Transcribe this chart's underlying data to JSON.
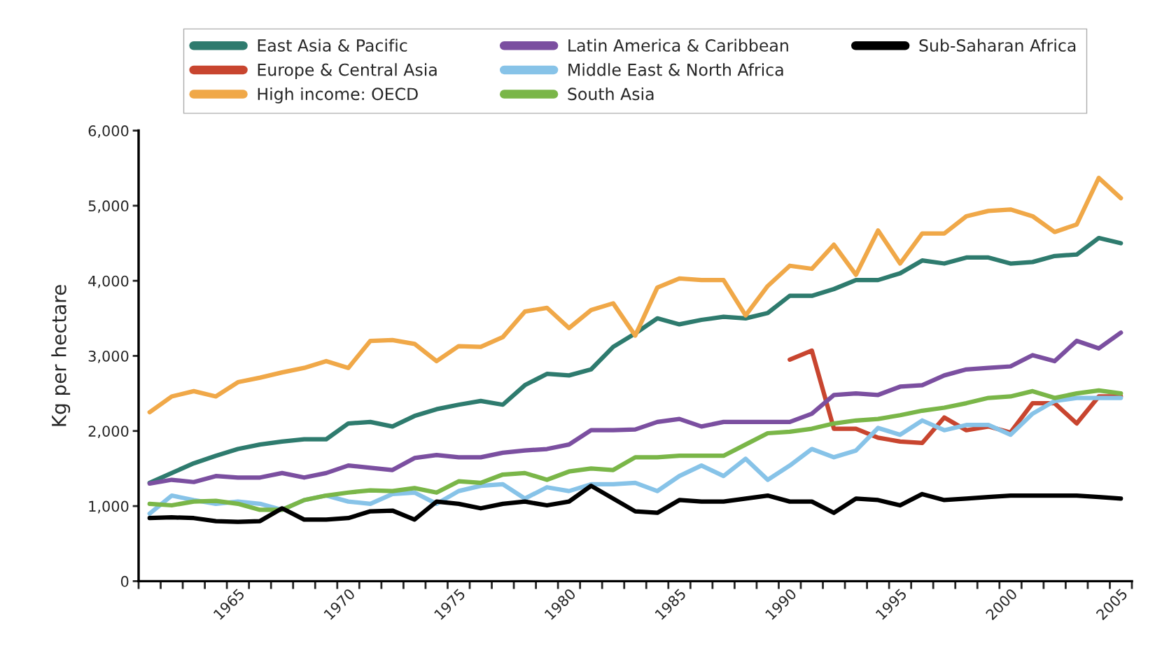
{
  "chart_data": {
    "type": "line",
    "ylabel": "Kg per hectare",
    "ylim": [
      0,
      6000
    ],
    "yticks": [
      {
        "value": 0,
        "label": "0"
      },
      {
        "value": 1000,
        "label": "1,000"
      },
      {
        "value": 2000,
        "label": "2,000"
      },
      {
        "value": 3000,
        "label": "3,000"
      },
      {
        "value": 4000,
        "label": "4,000"
      },
      {
        "value": 5000,
        "label": "5,000"
      },
      {
        "value": 6000,
        "label": "6,000"
      }
    ],
    "categories": [
      null,
      null,
      null,
      null,
      "1965",
      null,
      null,
      null,
      null,
      "1970",
      null,
      null,
      null,
      null,
      "1975",
      null,
      null,
      null,
      null,
      "1980",
      null,
      null,
      null,
      null,
      "1985",
      null,
      null,
      null,
      null,
      "1990",
      null,
      null,
      null,
      null,
      "1995",
      null,
      null,
      null,
      null,
      "2000",
      null,
      null,
      null,
      null,
      "2005"
    ],
    "legend": "top",
    "grid": false,
    "marker": "none",
    "line_style": "solid",
    "series": [
      {
        "name": "East Asia & Pacific",
        "color": "#2e7b6e",
        "values": [
          1310,
          1440,
          1570,
          1670,
          1760,
          1820,
          1860,
          1890,
          1890,
          2100,
          2120,
          2060,
          2200,
          2290,
          2350,
          2400,
          2350,
          2610,
          2760,
          2740,
          2820,
          3120,
          3300,
          3500,
          3420,
          3480,
          3520,
          3500,
          3570,
          3800,
          3800,
          3890,
          4010,
          4010,
          4100,
          4270,
          4230,
          4310,
          4310,
          4230,
          4250,
          4330,
          4350,
          4570,
          4500
        ]
      },
      {
        "name": "Europe & Central Asia",
        "color": "#c8452f",
        "values": [
          null,
          null,
          null,
          null,
          null,
          null,
          null,
          null,
          null,
          null,
          null,
          null,
          null,
          null,
          null,
          null,
          null,
          null,
          null,
          null,
          null,
          null,
          null,
          null,
          null,
          null,
          null,
          null,
          null,
          2950,
          3070,
          2030,
          2030,
          1910,
          1860,
          1840,
          2180,
          2010,
          2060,
          1980,
          2370,
          2370,
          2100,
          2460,
          2460
        ]
      },
      {
        "name": "High income: OECD",
        "color": "#f0a848",
        "values": [
          2250,
          2460,
          2530,
          2460,
          2650,
          2710,
          2780,
          2840,
          2930,
          2840,
          3200,
          3210,
          3160,
          2930,
          3130,
          3120,
          3250,
          3590,
          3640,
          3370,
          3610,
          3700,
          3270,
          3910,
          4030,
          4010,
          4010,
          3540,
          3930,
          4200,
          4160,
          4480,
          4080,
          4670,
          4230,
          4630,
          4630,
          4860,
          4930,
          4950,
          4860,
          4650,
          4750,
          5370,
          5100
        ]
      },
      {
        "name": "Latin America & Caribbean",
        "color": "#7b4fa0",
        "values": [
          1300,
          1350,
          1320,
          1400,
          1380,
          1380,
          1440,
          1380,
          1440,
          1540,
          1510,
          1480,
          1640,
          1680,
          1650,
          1650,
          1710,
          1740,
          1760,
          1820,
          2010,
          2010,
          2020,
          2120,
          2160,
          2060,
          2120,
          2120,
          2120,
          2120,
          2230,
          2480,
          2500,
          2480,
          2590,
          2610,
          2740,
          2820,
          2840,
          2860,
          3010,
          2930,
          3200,
          3100,
          3310
        ]
      },
      {
        "name": "Middle East & North Africa",
        "color": "#87c3e8",
        "values": [
          900,
          1140,
          1080,
          1030,
          1060,
          1030,
          950,
          1080,
          1140,
          1060,
          1030,
          1160,
          1180,
          1030,
          1200,
          1270,
          1290,
          1100,
          1250,
          1200,
          1290,
          1290,
          1310,
          1200,
          1400,
          1540,
          1400,
          1630,
          1350,
          1540,
          1760,
          1650,
          1740,
          2040,
          1950,
          2140,
          2010,
          2080,
          2080,
          1950,
          2230,
          2400,
          2440,
          2440,
          2440
        ]
      },
      {
        "name": "South Asia",
        "color": "#7ab648",
        "values": [
          1030,
          1010,
          1060,
          1070,
          1030,
          950,
          950,
          1080,
          1140,
          1180,
          1210,
          1200,
          1240,
          1180,
          1330,
          1310,
          1420,
          1440,
          1350,
          1460,
          1500,
          1480,
          1650,
          1650,
          1670,
          1670,
          1670,
          1820,
          1970,
          1990,
          2030,
          2100,
          2140,
          2160,
          2210,
          2270,
          2310,
          2370,
          2440,
          2460,
          2530,
          2440,
          2500,
          2540,
          2500
        ]
      },
      {
        "name": "Sub-Saharan Africa",
        "color": "#000000",
        "values": [
          840,
          850,
          840,
          800,
          790,
          800,
          970,
          820,
          820,
          840,
          930,
          940,
          820,
          1060,
          1030,
          970,
          1030,
          1060,
          1010,
          1060,
          1270,
          1100,
          930,
          910,
          1080,
          1060,
          1060,
          1100,
          1140,
          1060,
          1060,
          910,
          1100,
          1080,
          1010,
          1160,
          1080,
          1100,
          1120,
          1140,
          1140,
          1140,
          1140,
          1120,
          1100
        ]
      }
    ]
  }
}
